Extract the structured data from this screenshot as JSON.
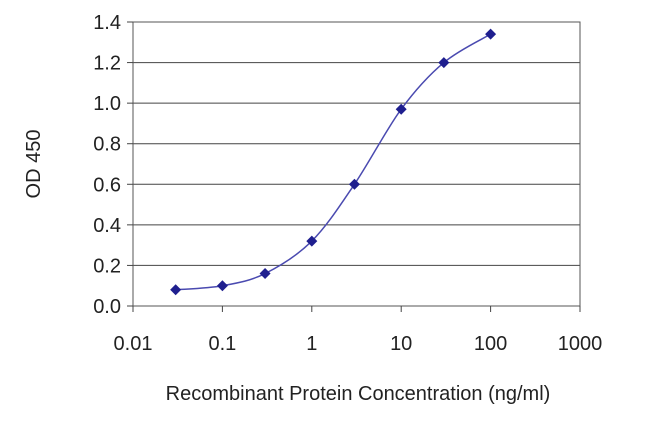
{
  "chart_data": {
    "type": "line",
    "title": "",
    "xlabel": "Recombinant Protein Concentration (ng/ml)",
    "ylabel": "OD 450",
    "x_scale": "log",
    "xlim": [
      0.01,
      1000
    ],
    "ylim": [
      0.0,
      1.4
    ],
    "x_ticks": [
      "0.01",
      "0.1",
      "1",
      "10",
      "100",
      "1000"
    ],
    "y_ticks": [
      "0.0",
      "0.2",
      "0.4",
      "0.6",
      "0.8",
      "1.0",
      "1.2",
      "1.4"
    ],
    "grid": "horizontal",
    "legend": "none",
    "series": [
      {
        "color": "#1f1f8f",
        "marker": "diamond",
        "points": [
          {
            "x": 0.03,
            "y": 0.08
          },
          {
            "x": 0.1,
            "y": 0.1
          },
          {
            "x": 0.3,
            "y": 0.16
          },
          {
            "x": 1,
            "y": 0.32
          },
          {
            "x": 3,
            "y": 0.6
          },
          {
            "x": 10,
            "y": 0.97
          },
          {
            "x": 30,
            "y": 1.2
          },
          {
            "x": 100,
            "y": 1.34
          }
        ]
      }
    ]
  }
}
